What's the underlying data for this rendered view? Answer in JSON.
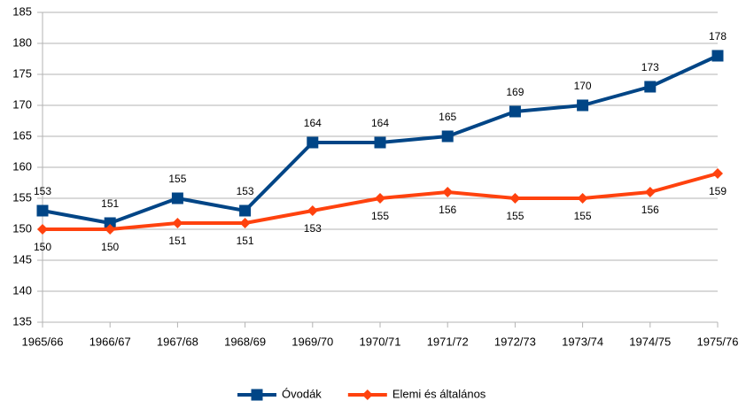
{
  "chart_data": {
    "type": "line",
    "categories": [
      "1965/66",
      "1966/67",
      "1967/68",
      "1968/69",
      "1969/70",
      "1970/71",
      "1971/72",
      "1972/73",
      "1973/74",
      "1974/75",
      "1975/76"
    ],
    "series": [
      {
        "name": "Óvodák",
        "color": "#004586",
        "marker": "square",
        "label_position": "above",
        "values": [
          153,
          151,
          155,
          153,
          164,
          164,
          165,
          169,
          170,
          173,
          178
        ]
      },
      {
        "name": "Elemi és általános",
        "color": "#ff420e",
        "marker": "diamond",
        "label_position": "below",
        "values": [
          150,
          150,
          151,
          151,
          153,
          155,
          156,
          155,
          155,
          156,
          159
        ]
      }
    ],
    "ylim": [
      135,
      185
    ],
    "yticks": [
      135,
      140,
      145,
      150,
      155,
      160,
      165,
      170,
      175,
      180,
      185
    ],
    "grid": true,
    "legend": "bottom"
  }
}
